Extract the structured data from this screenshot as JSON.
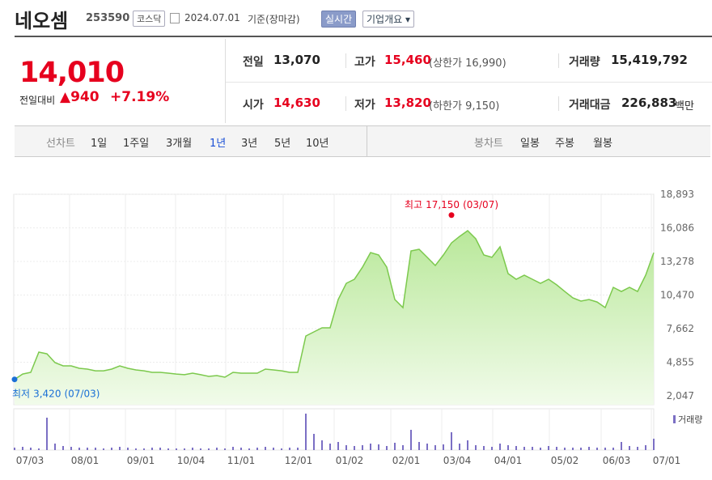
{
  "header": {
    "name": "네오셈",
    "code": "253590",
    "market": "코스닥",
    "date": "2024.07.01",
    "basis": "기준(장마감)",
    "realtime": "실시간",
    "company": "기업개요"
  },
  "quote": {
    "price": "14,010",
    "change_label": "전일대비",
    "change": "940",
    "rate": "+7.19%"
  },
  "summary": [
    [
      {
        "label": "전일",
        "value": "13,070"
      },
      {
        "label": "고가",
        "value": "15,460",
        "note": "(상한가 16,990)"
      },
      {
        "label": "거래량",
        "value": "15,419,792"
      }
    ],
    [
      {
        "label": "시가",
        "value": "14,630"
      },
      {
        "label": "저가",
        "value": "13,820",
        "note": "(하한가 9,150)"
      },
      {
        "label": "거래대금",
        "value": "226,883",
        "note": "백만"
      }
    ]
  ],
  "tabs": {
    "line": "선차트",
    "line_periods": [
      "1일",
      "1주일",
      "3개월",
      "1년",
      "3년",
      "5년",
      "10년"
    ],
    "candle": "봉차트",
    "candle_periods": [
      "일봉",
      "주봉",
      "월봉"
    ]
  },
  "chart_data": {
    "type": "area",
    "color": "#7cc94d",
    "values": [
      3420,
      3870,
      4010,
      5700,
      5560,
      4820,
      4550,
      4550,
      4350,
      4280,
      4140,
      4140,
      4280,
      4550,
      4350,
      4210,
      4140,
      4010,
      4010,
      3940,
      3870,
      3810,
      3940,
      3810,
      3670,
      3740,
      3600,
      4010,
      3940,
      3940,
      3940,
      4280,
      4210,
      4140,
      4010,
      4010,
      7050,
      7390,
      7730,
      7730,
      10100,
      11450,
      11790,
      12800,
      14020,
      13820,
      12800,
      10100,
      9420,
      14160,
      14290,
      13620,
      12940,
      13820,
      14830,
      15370,
      15850,
      15170,
      13820,
      13620,
      14500,
      12260,
      11790,
      12130,
      11790,
      11450,
      11790,
      11320,
      10770,
      10230,
      9960,
      10100,
      9890,
      9420,
      11110,
      10770,
      11110,
      10770,
      12130,
      14010
    ],
    "xlim": [
      0,
      79
    ],
    "xticks": [
      {
        "value": 0,
        "label": "07/03"
      },
      {
        "value": 6.8,
        "label": "08/01"
      },
      {
        "value": 13.7,
        "label": "09/01"
      },
      {
        "value": 19.9,
        "label": "10/04"
      },
      {
        "value": 26.1,
        "label": "11/01"
      },
      {
        "value": 33.2,
        "label": "12/01"
      },
      {
        "value": 39.5,
        "label": "01/02"
      },
      {
        "value": 46.5,
        "label": "02/01"
      },
      {
        "value": 52.8,
        "label": "03/04"
      },
      {
        "value": 59.1,
        "label": "04/01"
      },
      {
        "value": 66.1,
        "label": "05/02"
      },
      {
        "value": 72.5,
        "label": "06/03"
      },
      {
        "value": 78.7,
        "label": "07/01"
      }
    ],
    "ylim": [
      2047,
      18893
    ],
    "yticks": [
      {
        "value": 2047,
        "label": "2,047"
      },
      {
        "value": 4855,
        "label": "4,855"
      },
      {
        "value": 7662,
        "label": "7,662"
      },
      {
        "value": 10470,
        "label": "10,470"
      },
      {
        "value": 13278,
        "label": "13,278"
      },
      {
        "value": 16086,
        "label": "16,086"
      },
      {
        "value": 18893,
        "label": "18,893"
      }
    ],
    "grid": true,
    "high": {
      "label": "최고",
      "value": 17150,
      "value_label": "17,150",
      "date": "(03/07)",
      "x": 54
    },
    "low": {
      "label": "최저",
      "value": 3420,
      "value_label": "3,420",
      "date": "(07/03)",
      "x": 0
    },
    "volume": {
      "name": "거래량",
      "color": "#7b6fc4",
      "values": [
        3300000,
        4400000,
        3300000,
        2200000,
        44000000,
        8800000,
        5500000,
        4400000,
        3300000,
        3300000,
        3300000,
        2200000,
        3300000,
        4400000,
        3300000,
        2200000,
        2200000,
        3300000,
        3300000,
        2200000,
        2200000,
        2200000,
        3300000,
        2200000,
        2200000,
        3300000,
        2200000,
        4400000,
        3300000,
        2200000,
        3300000,
        4400000,
        3300000,
        2200000,
        3300000,
        3300000,
        49500000,
        22000000,
        13200000,
        8800000,
        11000000,
        6600000,
        5500000,
        6600000,
        8800000,
        7700000,
        5500000,
        9900000,
        6600000,
        27500000,
        11000000,
        8800000,
        6600000,
        7700000,
        24200000,
        8800000,
        13200000,
        6600000,
        5500000,
        4400000,
        8800000,
        6600000,
        5500000,
        4400000,
        4400000,
        3300000,
        5500000,
        4400000,
        3300000,
        3300000,
        3300000,
        4400000,
        3300000,
        3300000,
        3300000,
        11000000,
        5500000,
        4400000,
        6600000,
        15419792
      ]
    }
  }
}
